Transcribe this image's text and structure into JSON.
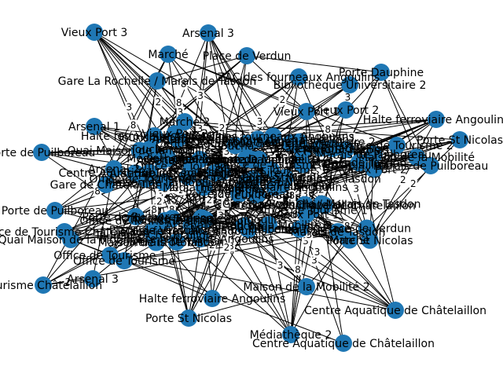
{
  "graph": {
    "node_color": "#1f77b4",
    "edge_color": "#000000",
    "node_labels": [
      "Vieux Port 3",
      "Arsenal 3",
      "Marché",
      "Place de Verdun",
      "Gare La Rochelle / Marais de Tasdon",
      "ZAC des fourneaux Angoulins",
      "Bibliothèque Universitaire 2",
      "Porte Dauphine",
      "Vieux Port 1",
      "Halte ferroviaire Angoulins",
      "Arsenal 1",
      "Porte St Nicolas",
      "Maison de la Mobilité",
      "Marais de Puilboreau",
      "Porte de Puilboreau",
      "Office de Tourisme Châtelaillon",
      "Marais de Tasdon",
      "Quai Maison de la Mobilité",
      "Office de Tourisme 1",
      "Office de Tourisme",
      "Arsenal 3",
      "Tourisme Châtelaillon",
      "Halte ferroviaire Angoulins",
      "Maison de la Mobilité 2",
      "Porte St Nicolas",
      "Centre Aquatique de Châtelaillon",
      "Médiathèque 2",
      "Centre Aquatique de Châtelaillon",
      "Office de Tourisme 2",
      "Gare de Châtelaillon",
      "Vieux Port 2",
      "Marché 2",
      "Toucha",
      "Arsenal 2",
      "Porte de Puilboreau"
    ],
    "edge_labels": [
      "3",
      "5",
      "6",
      "8",
      "9",
      "1",
      "2",
      "4",
      "7"
    ]
  }
}
